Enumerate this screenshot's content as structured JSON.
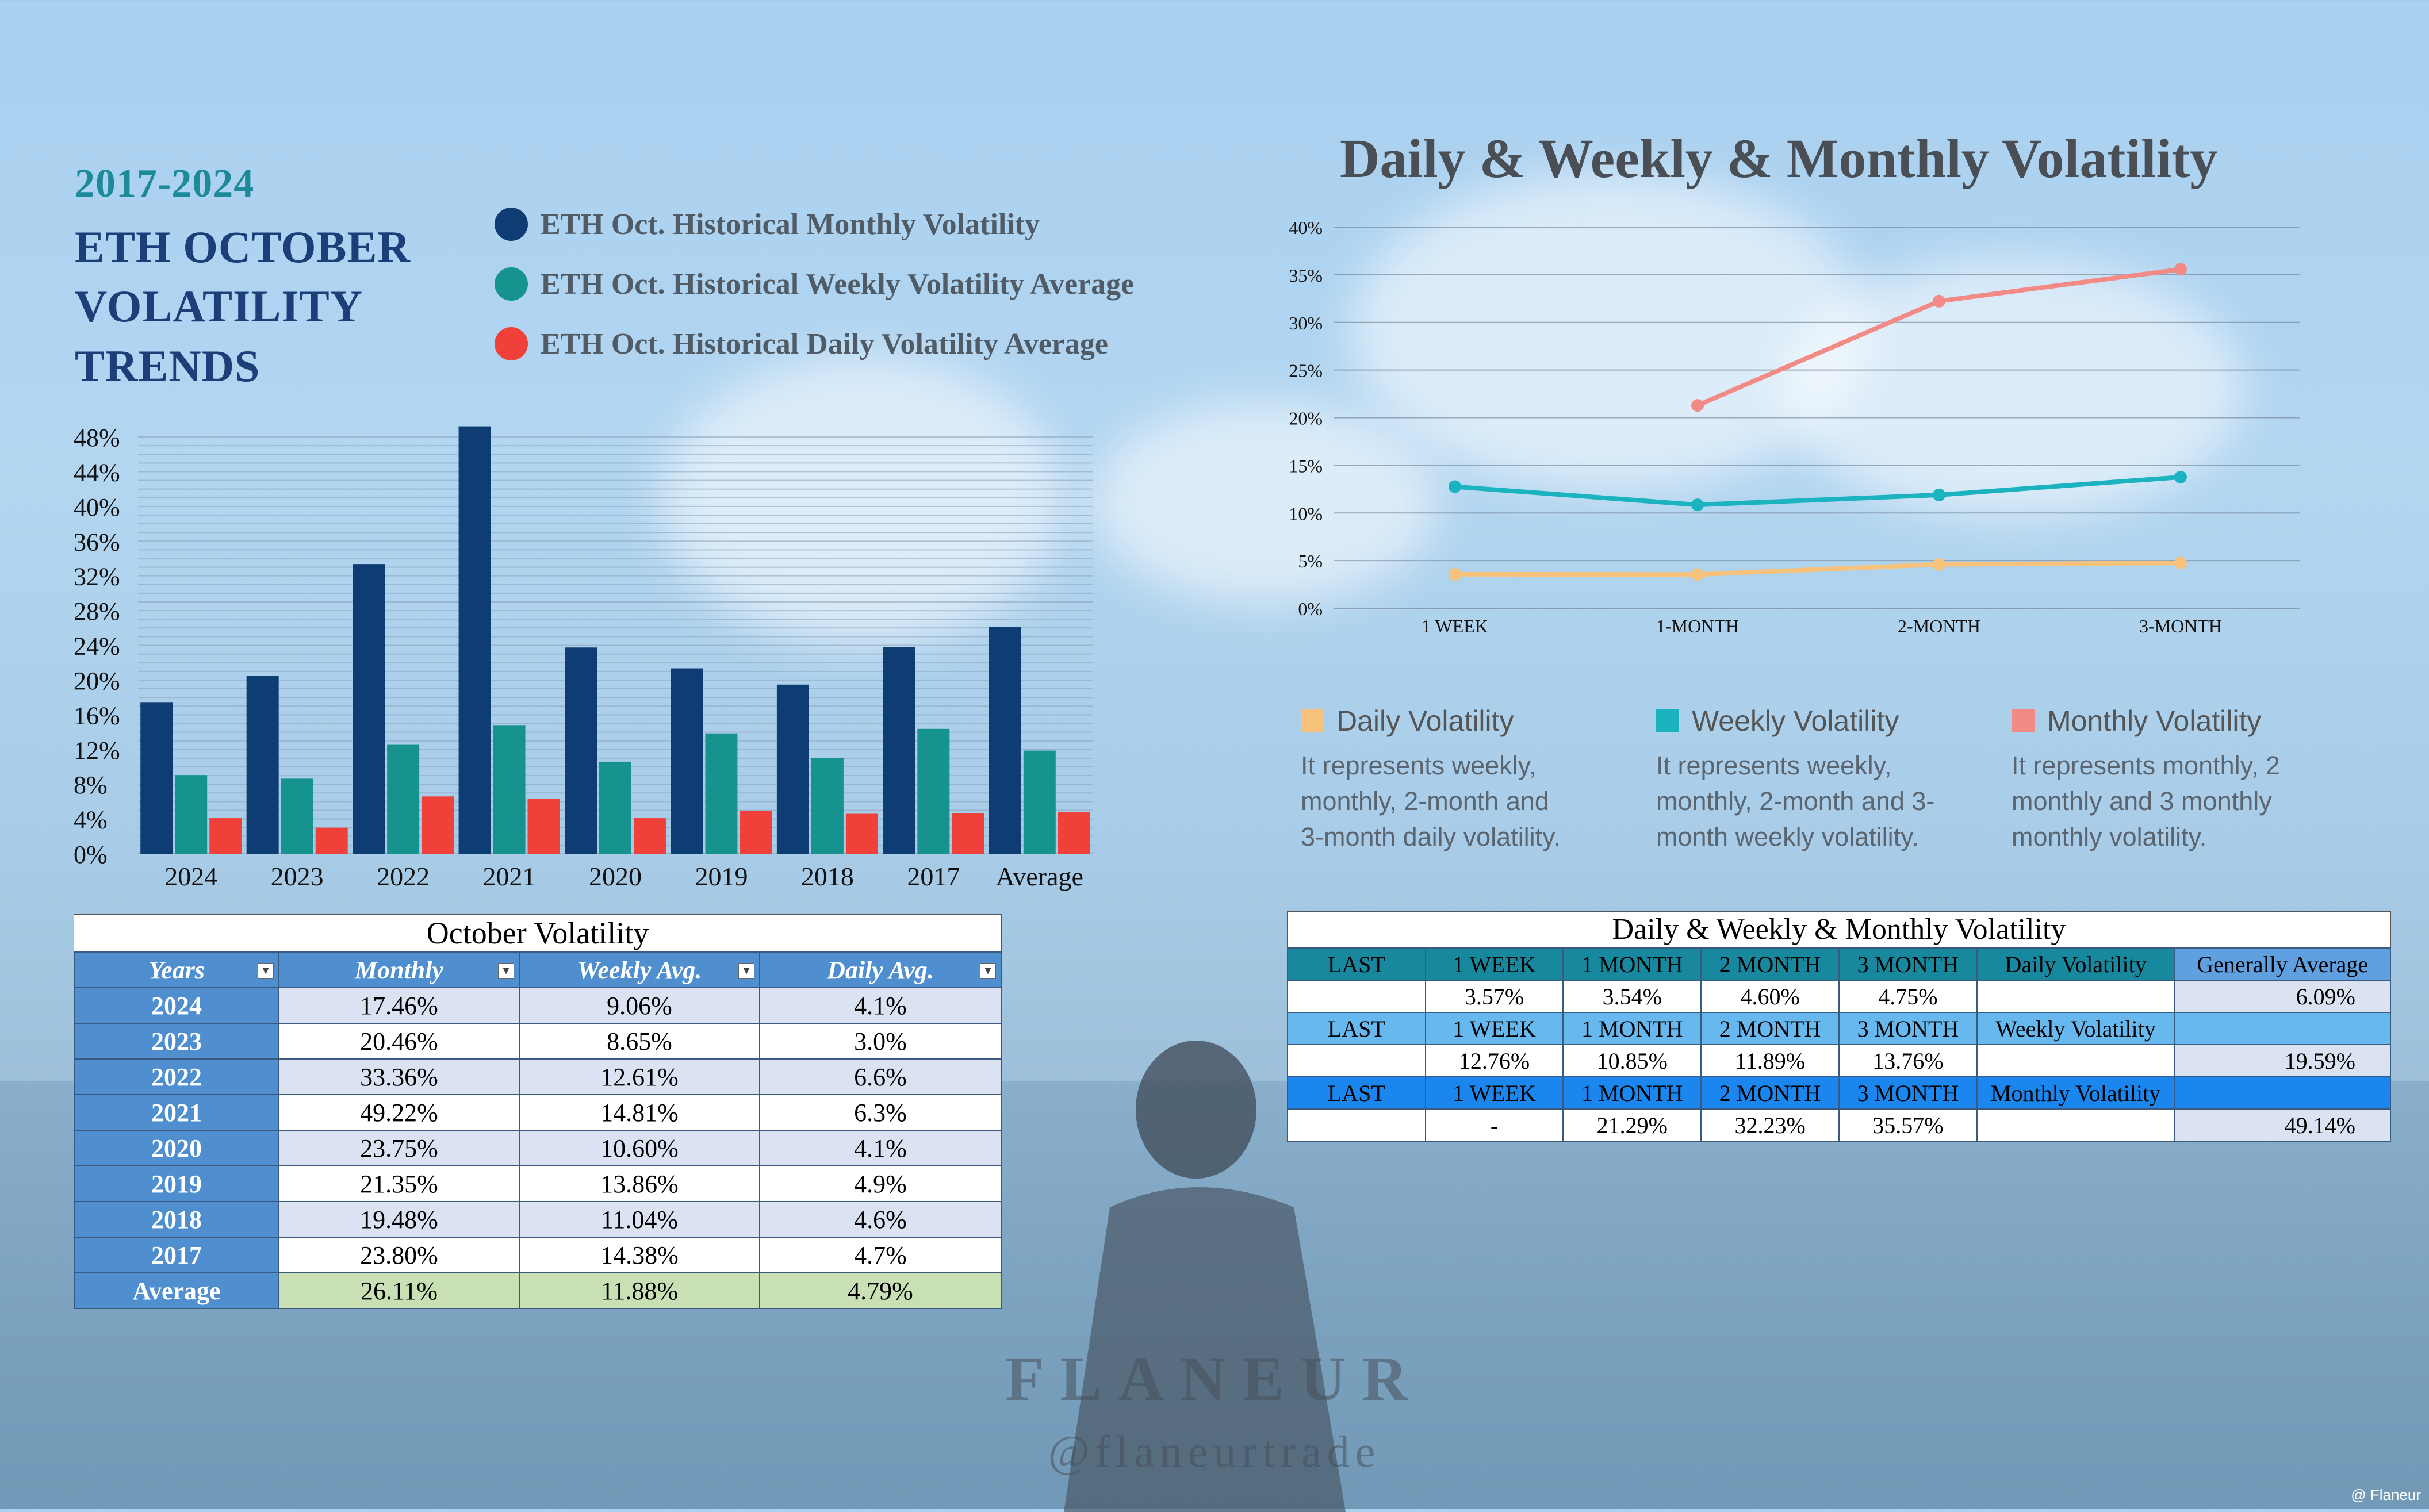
{
  "left": {
    "years_title": "2017-2024",
    "title_lines": [
      "ETH OCTOBER",
      "VOLATILITY",
      "TRENDS"
    ],
    "legend": [
      {
        "label": "ETH Oct. Historical Monthly Volatility",
        "color": "#0d3d73"
      },
      {
        "label": "ETH Oct. Historical Weekly Volatility Average",
        "color": "#16938f"
      },
      {
        "label": "ETH Oct. Historical Daily Volatility Average",
        "color": "#f0403a"
      }
    ]
  },
  "chart_data": [
    {
      "type": "bar",
      "title": "ETH OCTOBER VOLATILITY TRENDS",
      "categories": [
        "2024",
        "2023",
        "2022",
        "2021",
        "2020",
        "2019",
        "2018",
        "2017",
        "Average"
      ],
      "series": [
        {
          "name": "ETH Oct. Historical Monthly Volatility",
          "color": "#0d3d73",
          "values": [
            17.46,
            20.46,
            33.36,
            49.22,
            23.75,
            21.35,
            19.48,
            23.8,
            26.11
          ]
        },
        {
          "name": "ETH Oct. Historical Weekly Volatility Average",
          "color": "#16938f",
          "values": [
            9.06,
            8.65,
            12.61,
            14.81,
            10.6,
            13.86,
            11.04,
            14.38,
            11.88
          ]
        },
        {
          "name": "ETH Oct. Historical Daily Volatility Average",
          "color": "#f0403a",
          "values": [
            4.1,
            3.0,
            6.6,
            6.3,
            4.1,
            4.9,
            4.6,
            4.7,
            4.79
          ]
        }
      ],
      "ylim": [
        0,
        48
      ],
      "yticks": [
        "0%",
        "4%",
        "8%",
        "12%",
        "16%",
        "20%",
        "24%",
        "28%",
        "32%",
        "36%",
        "40%",
        "44%",
        "48%"
      ]
    },
    {
      "type": "line",
      "title": "Daily & Weekly & Monthly Volatility",
      "categories": [
        "1 WEEK",
        "1-MONTH",
        "2-MONTH",
        "3-MONTH"
      ],
      "series": [
        {
          "name": "Daily Volatility",
          "color": "#f6c27c",
          "values": [
            3.57,
            3.54,
            4.6,
            4.75
          ]
        },
        {
          "name": "Weekly Volatility",
          "color": "#1bb3c0",
          "values": [
            12.76,
            10.85,
            11.89,
            13.76
          ]
        },
        {
          "name": "Monthly Volatility",
          "color": "#f28b85",
          "values": [
            null,
            21.29,
            32.23,
            35.57
          ]
        }
      ],
      "ylim": [
        0,
        40
      ],
      "yticks": [
        "0%",
        "5%",
        "10%",
        "15%",
        "20%",
        "25%",
        "30%",
        "35%",
        "40%"
      ]
    }
  ],
  "right_legend": [
    {
      "name": "Daily Volatility",
      "color": "#f6c27c",
      "desc": [
        "It represents weekly,",
        "monthly, 2-month and",
        "3-month daily volatility."
      ]
    },
    {
      "name": "Weekly Volatility",
      "color": "#1bb3c0",
      "desc": [
        "It represents weekly,",
        "monthly, 2-month and 3-",
        "month weekly volatility."
      ]
    },
    {
      "name": "Monthly Volatility",
      "color": "#f28b85",
      "desc": [
        "It represents monthly, 2",
        "monthly and 3 monthly",
        "monthly volatility."
      ]
    }
  ],
  "table_oct": {
    "caption": "October Volatility",
    "headers": [
      "Years",
      "Monthly",
      "Weekly Avg.",
      "Daily Avg."
    ],
    "filter_glyph": "▾",
    "rows": [
      [
        "2024",
        "17.46%",
        "9.06%",
        "4.1%"
      ],
      [
        "2023",
        "20.46%",
        "8.65%",
        "3.0%"
      ],
      [
        "2022",
        "33.36%",
        "12.61%",
        "6.6%"
      ],
      [
        "2021",
        "49.22%",
        "14.81%",
        "6.3%"
      ],
      [
        "2020",
        "23.75%",
        "10.60%",
        "4.1%"
      ],
      [
        "2019",
        "21.35%",
        "13.86%",
        "4.9%"
      ],
      [
        "2018",
        "19.48%",
        "11.04%",
        "4.6%"
      ],
      [
        "2017",
        "23.80%",
        "14.38%",
        "4.7%"
      ],
      [
        "Average",
        "26.11%",
        "11.88%",
        "4.79%"
      ]
    ]
  },
  "table_dwm": {
    "caption": "Daily & Weekly & Monthly Volatility",
    "header_cols": [
      "LAST",
      "1 WEEK",
      "1 MONTH",
      "2 MONTH",
      "3 MONTH"
    ],
    "ga_label": "Generally Average",
    "groups": [
      {
        "label": "Daily Volatility",
        "values": [
          "",
          "3.57%",
          "3.54%",
          "4.60%",
          "4.75%"
        ],
        "avg": "6.09%"
      },
      {
        "label": "Weekly Volatility",
        "values": [
          "",
          "12.76%",
          "10.85%",
          "11.89%",
          "13.76%"
        ],
        "avg": "19.59%"
      },
      {
        "label": "Monthly Volatility",
        "values": [
          "",
          "-",
          "21.29%",
          "32.23%",
          "35.57%"
        ],
        "avg": "49.14%"
      }
    ]
  },
  "brand": {
    "name": "FLANEUR",
    "handle": "@flaneurtrade",
    "watermark": "@ Flaneur"
  }
}
